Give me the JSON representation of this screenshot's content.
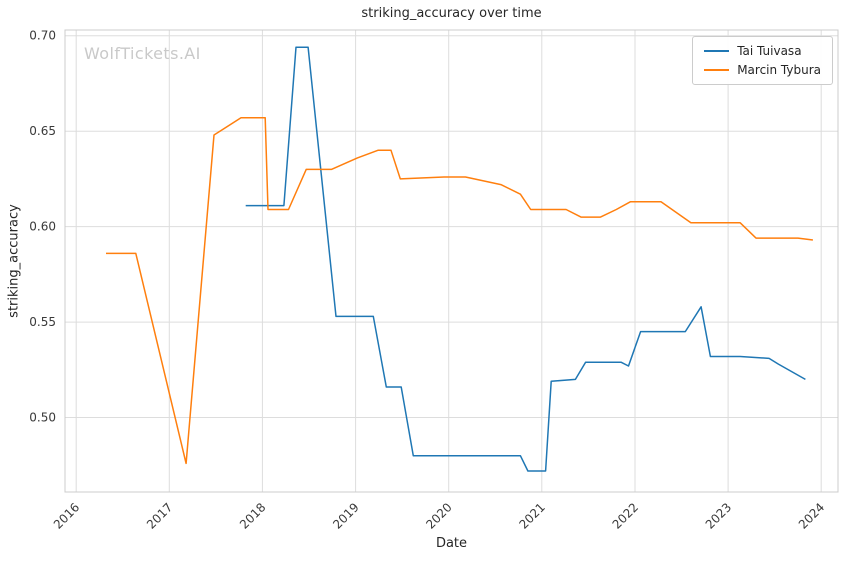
{
  "watermark": "WolfTickets.AI",
  "chart_data": {
    "type": "line",
    "title": "striking_accuracy over time",
    "xlabel": "Date",
    "ylabel": "striking_accuracy",
    "xlim": [
      2015.88,
      2024.18
    ],
    "ylim": [
      0.461,
      0.703
    ],
    "xticks": [
      2016,
      2017,
      2018,
      2019,
      2020,
      2021,
      2022,
      2023,
      2024
    ],
    "yticks": [
      0.5,
      0.55,
      0.6,
      0.65,
      0.7
    ],
    "grid": true,
    "legend_position": "upper right",
    "style": {
      "background": "#ffffff",
      "grid_color": "#dddddd",
      "border_color": "#cccccc",
      "tick_color": "#3a3a3a",
      "text_color": "#262626",
      "watermark_color": "#c9c9c9"
    },
    "series": [
      {
        "name": "Tai Tuivasa",
        "color": "#1f77b4",
        "points": [
          [
            2017.82,
            0.611
          ],
          [
            2018.23,
            0.611
          ],
          [
            2018.36,
            0.694
          ],
          [
            2018.49,
            0.694
          ],
          [
            2018.79,
            0.553
          ],
          [
            2019.19,
            0.553
          ],
          [
            2019.33,
            0.516
          ],
          [
            2019.49,
            0.516
          ],
          [
            2019.62,
            0.48
          ],
          [
            2020.77,
            0.48
          ],
          [
            2020.85,
            0.472
          ],
          [
            2021.04,
            0.472
          ],
          [
            2021.1,
            0.519
          ],
          [
            2021.36,
            0.52
          ],
          [
            2021.47,
            0.529
          ],
          [
            2021.85,
            0.529
          ],
          [
            2021.93,
            0.527
          ],
          [
            2022.06,
            0.545
          ],
          [
            2022.54,
            0.545
          ],
          [
            2022.71,
            0.558
          ],
          [
            2022.81,
            0.532
          ],
          [
            2023.13,
            0.532
          ],
          [
            2023.44,
            0.531
          ],
          [
            2023.54,
            0.528
          ],
          [
            2023.83,
            0.52
          ]
        ]
      },
      {
        "name": "Marcin Tybura",
        "color": "#ff7f0e",
        "points": [
          [
            2016.32,
            0.586
          ],
          [
            2016.64,
            0.586
          ],
          [
            2017.18,
            0.476
          ],
          [
            2017.48,
            0.648
          ],
          [
            2017.77,
            0.657
          ],
          [
            2018.03,
            0.657
          ],
          [
            2018.06,
            0.609
          ],
          [
            2018.28,
            0.609
          ],
          [
            2018.47,
            0.63
          ],
          [
            2018.74,
            0.63
          ],
          [
            2019.02,
            0.636
          ],
          [
            2019.24,
            0.64
          ],
          [
            2019.38,
            0.64
          ],
          [
            2019.48,
            0.625
          ],
          [
            2019.95,
            0.626
          ],
          [
            2020.18,
            0.626
          ],
          [
            2020.56,
            0.622
          ],
          [
            2020.77,
            0.617
          ],
          [
            2020.88,
            0.609
          ],
          [
            2021.26,
            0.609
          ],
          [
            2021.42,
            0.605
          ],
          [
            2021.63,
            0.605
          ],
          [
            2021.8,
            0.609
          ],
          [
            2021.95,
            0.613
          ],
          [
            2022.28,
            0.613
          ],
          [
            2022.6,
            0.602
          ],
          [
            2023.03,
            0.602
          ],
          [
            2023.13,
            0.602
          ],
          [
            2023.3,
            0.594
          ],
          [
            2023.75,
            0.594
          ],
          [
            2023.91,
            0.593
          ]
        ]
      }
    ]
  }
}
